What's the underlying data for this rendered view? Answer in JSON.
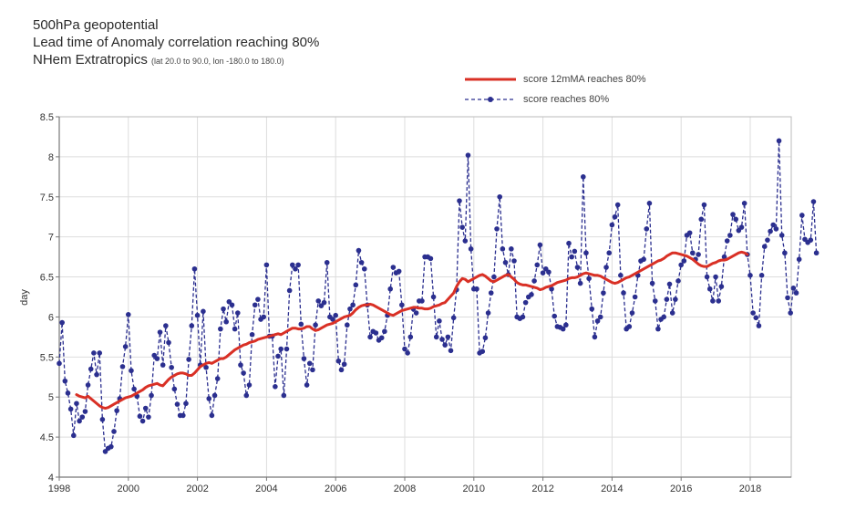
{
  "titles": {
    "line1": "500hPa geopotential",
    "line2": "Lead time of Anomaly correlation reaching 80%",
    "line3_main": "NHem Extratropics",
    "line3_sub": "(lat  20.0 to 90.0, lon  -180.0 to  180.0)"
  },
  "chart_data": {
    "type": "line",
    "title": "500hPa geopotential — Lead time of Anomaly correlation reaching 80%",
    "subtitle": "NHem Extratropics (lat 20.0 to 90.0, lon -180.0 to 180.0)",
    "xlabel": "",
    "ylabel": "day",
    "xlim": [
      1998,
      2019.2
    ],
    "ylim": [
      4,
      8.5
    ],
    "grid": true,
    "legend_position": "top-right",
    "x_ticks": [
      "1998",
      "2000",
      "2002",
      "2004",
      "2006",
      "2008",
      "2010",
      "2012",
      "2014",
      "2016",
      "2018"
    ],
    "y_ticks": [
      "4",
      "4.5",
      "5",
      "5.5",
      "6",
      "6.5",
      "7",
      "7.5",
      "8",
      "8.5"
    ],
    "colors": {
      "ma": "#d93025",
      "score": "#2b2f8f",
      "grid": "#dddddd",
      "axis": "#777777"
    },
    "series": [
      {
        "name": "score reaches 80%",
        "style": "dashed-markers",
        "x_start": 1998.0,
        "x_step": 0.08333,
        "values": [
          5.42,
          5.93,
          5.2,
          5.05,
          4.85,
          4.52,
          4.92,
          4.7,
          4.75,
          4.82,
          5.15,
          5.35,
          5.55,
          5.28,
          5.55,
          4.72,
          4.32,
          4.36,
          4.38,
          4.57,
          4.83,
          4.98,
          5.38,
          5.63,
          6.03,
          5.33,
          5.1,
          5.01,
          4.76,
          4.7,
          4.86,
          4.75,
          5.02,
          5.52,
          5.48,
          5.81,
          5.4,
          5.89,
          5.68,
          5.37,
          5.1,
          4.91,
          4.77,
          4.77,
          4.92,
          5.47,
          5.89,
          6.6,
          6.02,
          5.4,
          6.07,
          5.37,
          4.98,
          4.77,
          5.02,
          5.23,
          5.85,
          6.1,
          5.94,
          6.19,
          6.15,
          5.85,
          6.05,
          5.4,
          5.3,
          5.02,
          5.15,
          5.78,
          6.15,
          6.22,
          5.97,
          6.0,
          6.65,
          5.76,
          5.76,
          5.13,
          5.51,
          5.6,
          5.02,
          5.6,
          6.33,
          6.65,
          6.6,
          6.65,
          5.91,
          5.48,
          5.15,
          5.42,
          5.34,
          5.9,
          6.2,
          6.14,
          6.18,
          6.68,
          6.0,
          5.97,
          6.02,
          5.45,
          5.34,
          5.41,
          5.9,
          6.1,
          6.15,
          6.4,
          6.83,
          6.68,
          6.6,
          6.15,
          5.75,
          5.82,
          5.8,
          5.71,
          5.74,
          5.82,
          6.02,
          6.35,
          6.62,
          6.55,
          6.57,
          6.15,
          5.6,
          5.55,
          5.75,
          6.1,
          6.05,
          6.2,
          6.2,
          6.75,
          6.75,
          6.73,
          6.25,
          5.75,
          5.95,
          5.72,
          5.65,
          5.75,
          5.58,
          5.99,
          6.34,
          7.45,
          7.12,
          6.95,
          8.02,
          6.85,
          6.35,
          6.35,
          5.55,
          5.57,
          5.74,
          6.05,
          6.3,
          6.5,
          7.1,
          7.5,
          6.85,
          6.68,
          6.53,
          6.85,
          6.7,
          6.0,
          5.98,
          6.0,
          6.18,
          6.25,
          6.28,
          6.45,
          6.65,
          6.9,
          6.55,
          6.6,
          6.56,
          6.35,
          6.01,
          5.88,
          5.87,
          5.85,
          5.9,
          6.92,
          6.75,
          6.82,
          6.62,
          6.42,
          7.75,
          6.8,
          6.48,
          6.1,
          5.75,
          5.95,
          6.0,
          6.3,
          6.62,
          6.8,
          7.15,
          7.25,
          7.4,
          6.52,
          6.3,
          5.85,
          5.88,
          6.05,
          6.25,
          6.52,
          6.7,
          6.72,
          7.1,
          7.42,
          6.42,
          6.2,
          5.85,
          5.97,
          6.0,
          6.22,
          6.41,
          6.05,
          6.22,
          6.45,
          6.65,
          6.7,
          7.02,
          7.05,
          6.8,
          6.72,
          6.78,
          7.22,
          7.4,
          6.5,
          6.35,
          6.2,
          6.5,
          6.2,
          6.38,
          6.75,
          6.95,
          7.02,
          7.28,
          7.22,
          7.08,
          7.12,
          7.42,
          6.78,
          6.52,
          6.05,
          5.99,
          5.89,
          6.52,
          6.88,
          6.96,
          7.07,
          7.15,
          7.1,
          8.2,
          7.02,
          6.8,
          6.24,
          6.05,
          6.36,
          6.3,
          6.72,
          7.27,
          6.97,
          6.93,
          6.96,
          7.44,
          6.8
        ]
      },
      {
        "name": "score 12mMA reaches 80%",
        "style": "solid-thick",
        "x_start": 1998.5,
        "x_step": 0.08333,
        "values": [
          5.03,
          5.01,
          5.0,
          4.99,
          5.01,
          4.98,
          4.95,
          4.92,
          4.89,
          4.87,
          4.86,
          4.87,
          4.89,
          4.91,
          4.93,
          4.95,
          4.97,
          4.99,
          5.0,
          5.01,
          5.03,
          5.05,
          5.07,
          5.09,
          5.12,
          5.14,
          5.15,
          5.16,
          5.17,
          5.15,
          5.14,
          5.18,
          5.22,
          5.25,
          5.27,
          5.29,
          5.3,
          5.3,
          5.29,
          5.27,
          5.27,
          5.3,
          5.34,
          5.38,
          5.4,
          5.42,
          5.43,
          5.42,
          5.44,
          5.46,
          5.48,
          5.48,
          5.5,
          5.53,
          5.56,
          5.59,
          5.61,
          5.63,
          5.65,
          5.66,
          5.68,
          5.69,
          5.7,
          5.72,
          5.73,
          5.74,
          5.75,
          5.76,
          5.77,
          5.78,
          5.79,
          5.78,
          5.8,
          5.82,
          5.84,
          5.86,
          5.86,
          5.85,
          5.85,
          5.86,
          5.88,
          5.88,
          5.85,
          5.83,
          5.84,
          5.86,
          5.88,
          5.9,
          5.91,
          5.92,
          5.94,
          5.96,
          5.98,
          6.0,
          6.01,
          6.02,
          6.05,
          6.09,
          6.12,
          6.14,
          6.15,
          6.15,
          6.16,
          6.15,
          6.13,
          6.11,
          6.09,
          6.07,
          6.05,
          6.03,
          6.02,
          6.04,
          6.06,
          6.08,
          6.09,
          6.1,
          6.11,
          6.12,
          6.12,
          6.11,
          6.11,
          6.1,
          6.1,
          6.11,
          6.13,
          6.14,
          6.15,
          6.17,
          6.18,
          6.22,
          6.26,
          6.3,
          6.38,
          6.44,
          6.48,
          6.47,
          6.44,
          6.46,
          6.48,
          6.5,
          6.52,
          6.53,
          6.51,
          6.48,
          6.45,
          6.44,
          6.46,
          6.48,
          6.5,
          6.52,
          6.53,
          6.5,
          6.47,
          6.43,
          6.41,
          6.4,
          6.4,
          6.39,
          6.38,
          6.37,
          6.36,
          6.34,
          6.35,
          6.37,
          6.38,
          6.39,
          6.41,
          6.43,
          6.44,
          6.45,
          6.46,
          6.48,
          6.49,
          6.49,
          6.5,
          6.52,
          6.54,
          6.55,
          6.54,
          6.53,
          6.52,
          6.52,
          6.51,
          6.49,
          6.47,
          6.45,
          6.43,
          6.42,
          6.43,
          6.45,
          6.47,
          6.49,
          6.5,
          6.52,
          6.54,
          6.56,
          6.58,
          6.6,
          6.62,
          6.64,
          6.66,
          6.68,
          6.7,
          6.71,
          6.73,
          6.76,
          6.78,
          6.8,
          6.8,
          6.79,
          6.78,
          6.77,
          6.76,
          6.74,
          6.72,
          6.69,
          6.66,
          6.64,
          6.63,
          6.63,
          6.65,
          6.67,
          6.68,
          6.7,
          6.71,
          6.71,
          6.72,
          6.74,
          6.76,
          6.78,
          6.8,
          6.81,
          6.8,
          6.78
        ]
      }
    ]
  },
  "legend": {
    "items": [
      {
        "label": "score 12mMA reaches 80%",
        "key": "ma"
      },
      {
        "label": "score reaches 80%",
        "key": "score"
      }
    ]
  }
}
